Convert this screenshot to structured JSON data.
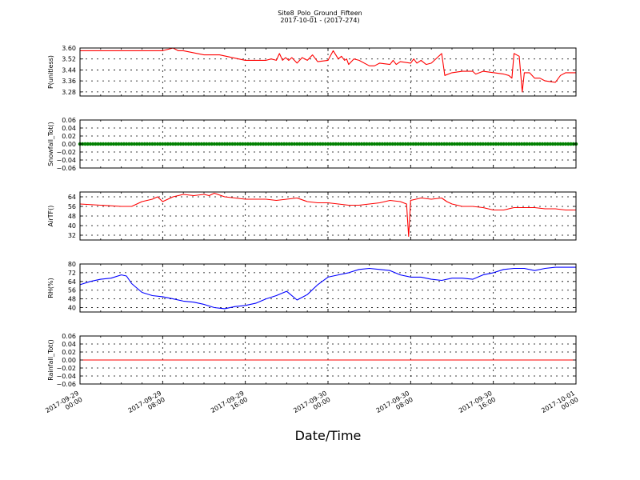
{
  "header": {
    "title": "Site8_Polo_Ground_Fifteen",
    "subtitle": "2017-10-01 - (2017-274)"
  },
  "xlabel": "Date/Time",
  "x_ticks": [
    "2017-09-29\n00:00",
    "2017-09-29\n08:00",
    "2017-09-29\n16:00",
    "2017-09-30\n00:00",
    "2017-09-30\n08:00",
    "2017-09-30\n16:00",
    "2017-10-01\n00:00"
  ],
  "chart_data": [
    {
      "type": "line",
      "ylabel": "P(unitless)",
      "yticks": [
        "3.60",
        "3.52",
        "3.44",
        "3.36",
        "3.28"
      ],
      "ylim": [
        3.25,
        3.6
      ],
      "color": "#ff0000",
      "x": [
        0,
        4,
        8,
        9,
        9.5,
        10,
        12,
        13.5,
        16,
        18,
        18.5,
        19,
        19.3,
        19.6,
        19.9,
        20.2,
        20.5,
        21,
        21.5,
        22,
        22.5,
        23,
        24,
        24.5,
        25,
        25.3,
        25.6,
        25.8,
        26,
        26.5,
        27,
        28,
        28.5,
        29,
        30,
        30.3,
        30.6,
        31,
        32,
        32.3,
        32.6,
        33,
        33.5,
        34,
        35,
        35.3,
        36,
        37,
        38,
        38.3,
        39,
        41,
        41.5,
        41.8,
        42,
        42.5,
        42.8,
        43,
        43.5,
        44,
        44.5,
        45,
        46,
        46.5,
        47,
        48
      ],
      "y": [
        3.58,
        3.58,
        3.58,
        3.6,
        3.58,
        3.58,
        3.55,
        3.55,
        3.51,
        3.51,
        3.52,
        3.51,
        3.56,
        3.51,
        3.53,
        3.51,
        3.53,
        3.49,
        3.53,
        3.51,
        3.55,
        3.5,
        3.51,
        3.58,
        3.52,
        3.54,
        3.51,
        3.52,
        3.48,
        3.52,
        3.51,
        3.47,
        3.47,
        3.49,
        3.48,
        3.51,
        3.48,
        3.5,
        3.49,
        3.52,
        3.49,
        3.51,
        3.48,
        3.49,
        3.56,
        3.4,
        3.42,
        3.43,
        3.43,
        3.41,
        3.43,
        3.41,
        3.4,
        3.38,
        3.56,
        3.54,
        3.28,
        3.42,
        3.42,
        3.38,
        3.38,
        3.36,
        3.35,
        3.4,
        3.42,
        3.42
      ]
    },
    {
      "type": "scatter",
      "ylabel": "Snowfall_Tot()",
      "yticks": [
        "0.06",
        "0.04",
        "0.02",
        "0.00",
        "−0.02",
        "−0.04",
        "−0.06"
      ],
      "ylim": [
        -0.06,
        0.06
      ],
      "color": "#008000",
      "series": [
        {
          "x_start": 0,
          "x_end": 48,
          "value": 0.0
        }
      ]
    },
    {
      "type": "line",
      "ylabel": "AirTF()",
      "yticks": [
        "64",
        "56",
        "48",
        "40",
        "32"
      ],
      "ylim": [
        28,
        68
      ],
      "color": "#ff0000",
      "x": [
        0,
        2,
        4,
        5,
        6,
        7,
        7.5,
        8,
        9,
        10,
        11,
        12,
        12.5,
        13,
        14,
        15,
        16,
        17,
        18,
        19,
        20,
        21,
        22,
        23,
        24,
        25,
        26,
        27,
        28,
        29,
        30,
        31,
        31.6,
        31.8,
        32,
        32.5,
        33,
        34,
        35,
        35.5,
        36,
        37,
        38,
        39,
        40,
        41,
        42,
        43,
        44,
        45,
        46,
        47,
        48
      ],
      "y": [
        58,
        57,
        56,
        56,
        60,
        62,
        64,
        60,
        64,
        66,
        65,
        66,
        65,
        67,
        64,
        63,
        62,
        62,
        62,
        61,
        62,
        63,
        60,
        59,
        59,
        58,
        57,
        57,
        58,
        59,
        61,
        60,
        58,
        31,
        61,
        62,
        63,
        62,
        63,
        60,
        58,
        56,
        56,
        55,
        53,
        53,
        55,
        55,
        55,
        54,
        54,
        53,
        53
      ]
    },
    {
      "type": "line",
      "ylabel": "RH(%)",
      "yticks": [
        "80",
        "72",
        "64",
        "56",
        "48",
        "40"
      ],
      "ylim": [
        36,
        80
      ],
      "color": "#0000ff",
      "x": [
        0,
        1,
        2,
        3,
        4,
        4.5,
        5,
        5.5,
        6,
        7,
        8,
        9,
        10,
        11,
        12,
        13,
        14,
        15,
        16,
        17,
        18,
        19,
        19.5,
        20,
        21,
        22,
        23,
        24,
        25,
        26,
        27,
        28,
        29,
        30,
        31,
        32,
        33,
        34,
        35,
        36,
        37,
        38,
        39,
        40,
        41,
        42,
        43,
        44,
        45,
        46,
        47,
        48
      ],
      "y": [
        61,
        64,
        66,
        67,
        70,
        69,
        62,
        58,
        54,
        51,
        50,
        48,
        46,
        45,
        43,
        40,
        39,
        41,
        42,
        44,
        48,
        51,
        53,
        55,
        47,
        52,
        61,
        68,
        70,
        72,
        75,
        76,
        75,
        74,
        70,
        68,
        68,
        66,
        65,
        67,
        67,
        66,
        70,
        72,
        75,
        76,
        76,
        74,
        76,
        77,
        77,
        77
      ]
    },
    {
      "type": "line",
      "ylabel": "Rainfall_Tot()",
      "yticks": [
        "0.06",
        "0.04",
        "0.02",
        "0.00",
        "−0.02",
        "−0.04",
        "−0.06"
      ],
      "ylim": [
        -0.06,
        0.06
      ],
      "color": "#ff0000",
      "x": [
        0,
        48
      ],
      "y": [
        0.0,
        0.0
      ]
    }
  ]
}
